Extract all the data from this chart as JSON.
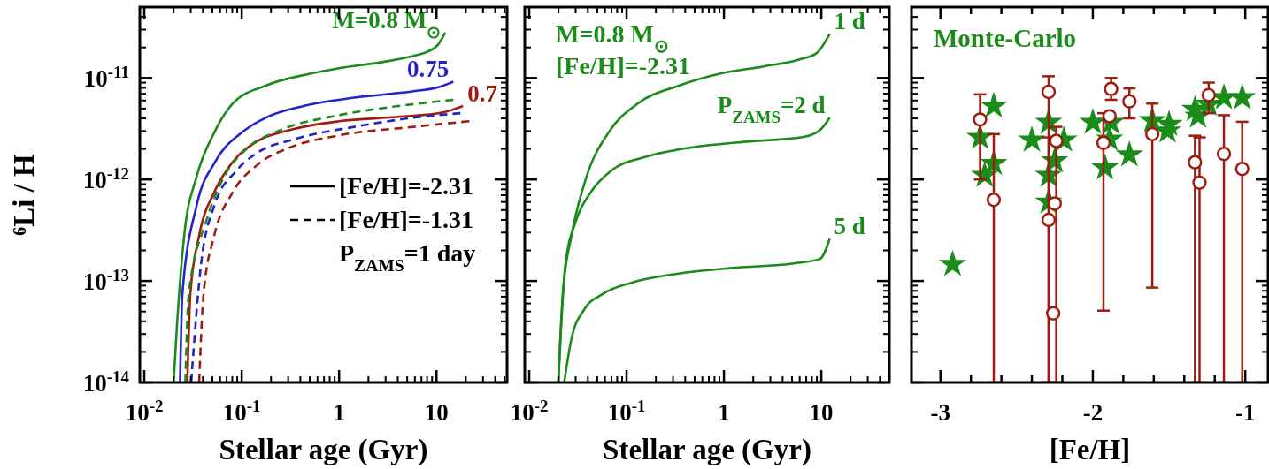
{
  "chart_data": [
    {
      "type": "line",
      "xlabel": "Stellar age (Gyr)",
      "ylabel": "⁶Li / H",
      "log": "xy",
      "xlim": [
        0.009,
        53
      ],
      "ylim": [
        1e-14,
        5e-11
      ],
      "xticks": [
        {
          "value": 0.01,
          "label": "10$^{-2}$"
        },
        {
          "value": 0.1,
          "label": "10$^{-1}$"
        },
        1,
        10
      ],
      "yticks": [
        {
          "value": 1e-14,
          "label": "10$^{-14}$"
        },
        {
          "value": 1e-13,
          "label": "10$^{-13}$"
        },
        {
          "value": 1e-12,
          "label": "10$^{-12}$"
        },
        {
          "value": 1e-11,
          "label": "10$^{-11}$"
        }
      ],
      "annotations": [
        "[Fe/H]=-2.31",
        "[Fe/H]=-1.31",
        "P$_{ZAMS}$=1 day"
      ],
      "series": [
        {
          "name": "M=0.8 M$_{⊙}$",
          "color": "#1a8c1a",
          "line_style": "solid",
          "x": [
            0.02,
            0.0217,
            0.0257,
            0.0344,
            0.0523,
            0.081,
            0.176,
            0.5,
            1.0,
            2.85,
            5.8,
            8.1,
            10.4,
            12.3
          ],
          "values": [
            1e-14,
            3.75e-14,
            2.8e-13,
            1.06e-12,
            2.9e-12,
            5.6e-12,
            8.4e-12,
            1.1e-11,
            1.25e-11,
            1.44e-11,
            1.65e-11,
            1.82e-11,
            2.14e-11,
            2.8e-11
          ]
        },
        {
          "name": "0.75",
          "color": "#2323cc",
          "line_style": "solid",
          "x": [
            0.0233,
            0.0246,
            0.0344,
            0.0533,
            0.1,
            0.176,
            0.433,
            1.43,
            5.8,
            10.9,
            14.9
          ],
          "values": [
            1e-14,
            7.4e-14,
            5.5e-13,
            1.49e-12,
            2.9e-12,
            4.06e-12,
            5.3e-12,
            6.4e-12,
            7.4e-12,
            8.2e-12,
            9.2e-12
          ]
        },
        {
          "name": "0.7",
          "color": "#a01c10",
          "line_style": "solid",
          "x": [
            0.0277,
            0.0297,
            0.0366,
            0.0523,
            0.081,
            0.143,
            0.31,
            1.0,
            4.06,
            11.6,
            18.7
          ],
          "values": [
            1e-14,
            7.4e-14,
            2.8e-13,
            7.5e-13,
            1.49e-12,
            2.37e-12,
            3.07e-12,
            3.75e-12,
            4.14e-12,
            4.58e-12,
            5.3e-12
          ]
        },
        {
          "color": "#1a8c1a",
          "line_style": "dashed",
          "x": [
            0.0264,
            0.0286,
            0.0433,
            0.0658,
            0.116,
            0.251,
            1.0,
            4.06,
            14.9
          ],
          "values": [
            1e-14,
            7.4e-14,
            3.9e-13,
            1.06e-12,
            2.06e-12,
            3.07e-12,
            4.3e-12,
            5.3e-12,
            6.1e-12
          ]
        },
        {
          "color": "#2323cc",
          "line_style": "dashed",
          "x": [
            0.0303,
            0.0382,
            0.0523,
            0.0881,
            0.143,
            0.351,
            1.43,
            5.8,
            17.6
          ],
          "values": [
            1e-14,
            1.44e-13,
            5.5e-13,
            1.22e-12,
            1.82e-12,
            2.5e-12,
            3.3e-12,
            4.06e-12,
            4.5e-12
          ]
        },
        {
          "color": "#a01c10",
          "line_style": "dashed",
          "x": [
            0.0366,
            0.0406,
            0.0523,
            0.081,
            0.143,
            0.31,
            1.0,
            5.8,
            21.7
          ],
          "values": [
            1e-14,
            7.4e-14,
            2.8e-13,
            7.5e-13,
            1.38e-12,
            2.06e-12,
            2.72e-12,
            3.3e-12,
            3.75e-12
          ]
        }
      ]
    },
    {
      "type": "line",
      "xlabel": "Stellar age (Gyr)",
      "log": "xy",
      "xlim": [
        0.009,
        50
      ],
      "ylim": [
        1e-14,
        5e-11
      ],
      "tick_labels": "x",
      "xticks": [
        {
          "value": 0.01,
          "label": "10$^{-2}$"
        },
        {
          "value": 0.1,
          "label": "10$^{-1}$"
        },
        1,
        10
      ],
      "yticks": [
        1e-14,
        1e-13,
        1e-12,
        1e-11
      ],
      "annotations": [
        "M=0.8 M$_{⊙}$",
        "[Fe/H]=-2.31"
      ],
      "series": [
        {
          "name": "1 d",
          "color": "#1a8c1a",
          "line_style": "solid",
          "x": [
            0.0199,
            0.0221,
            0.0272,
            0.0387,
            0.0652,
            0.13,
            0.345,
            0.9,
            2.55,
            5.9,
            8.9,
            12.2
          ],
          "values": [
            1e-14,
            7.4e-14,
            2.8e-13,
            1.06e-12,
            2.9e-12,
            5.6e-12,
            8.4e-12,
            1.1e-11,
            1.3e-11,
            1.52e-11,
            1.75e-11,
            2.72e-11
          ]
        },
        {
          "name": "P$_{ZAMS}$=2 d",
          "color": "#1a8c1a",
          "line_style": "solid",
          "x": [
            0.0199,
            0.0235,
            0.0302,
            0.043,
            0.0695,
            0.16,
            0.453,
            1.83,
            6.4,
            9.7,
            12.2
          ],
          "values": [
            1e-14,
            1.44e-13,
            3.9e-13,
            7.5e-13,
            1.22e-12,
            1.68e-12,
            2.06e-12,
            2.37e-12,
            2.61e-12,
            3.07e-12,
            4.06e-12
          ]
        },
        {
          "name": "5 d",
          "color": "#1a8c1a",
          "line_style": "solid",
          "x": [
            0.0229,
            0.0272,
            0.0371,
            0.0563,
            0.112,
            0.318,
            1.29,
            5.2,
            9.7,
            12.2
          ],
          "values": [
            1e-14,
            2.72e-14,
            5.3e-14,
            7.4e-14,
            9.6e-14,
            1.17e-13,
            1.35e-13,
            1.49e-13,
            1.65e-13,
            2.61e-13
          ]
        }
      ]
    },
    {
      "type": "scatter",
      "xlabel": "[Fe/H]",
      "log": "y",
      "xlim": [
        -3.19,
        -0.85
      ],
      "ylim": [
        1e-14,
        5e-11
      ],
      "tick_labels": "x",
      "xticks": [
        -3,
        {
          "value": -2.8,
          "label": null
        },
        {
          "value": -2.6,
          "label": null
        },
        {
          "value": -2.4,
          "label": null
        },
        {
          "value": -2.2,
          "label": null
        },
        -2,
        {
          "value": -1.8,
          "label": null
        },
        {
          "value": -1.6,
          "label": null
        },
        {
          "value": -1.4,
          "label": null
        },
        {
          "value": -1.2,
          "label": null
        },
        -1
      ],
      "yticks": [
        1e-14,
        1e-13,
        1e-12,
        1e-11
      ],
      "series": [
        {
          "name": "Monte-Carlo",
          "color": "#1a8c1a",
          "marker": "star",
          "x": [
            -2.65,
            -2.74,
            -2.65,
            -2.71,
            -2.4,
            -2.29,
            -2.19,
            -2.25,
            -2.29,
            -2.29,
            -2.0,
            -1.88,
            -1.89,
            -1.92,
            -1.76,
            -1.61,
            -1.5,
            -1.51,
            -1.33,
            -1.31,
            -1.24,
            -1.14,
            -1.02,
            -2.92
          ],
          "values": [
            5.3e-12,
            2.6e-12,
            1.44e-12,
            1.1e-12,
            2.45e-12,
            3.65e-12,
            2.45e-12,
            1.53e-12,
            1.1e-12,
            6e-13,
            3.65e-12,
            3.65e-12,
            2.5e-12,
            1.3e-12,
            1.75e-12,
            3.8e-12,
            3.5e-12,
            3e-12,
            4.9e-12,
            4.2e-12,
            5.5e-12,
            6.4e-12,
            6.4e-12,
            1.46e-13
          ]
        },
        {
          "color": "#a01c10",
          "marker": "circle",
          "x": [
            -2.74,
            -2.65,
            -2.29,
            -2.29,
            -2.25,
            -2.24,
            -2.26,
            -1.88,
            -1.89,
            -1.93,
            -1.76,
            -1.61,
            -1.33,
            -1.3,
            -1.24,
            -1.14,
            -1.02
          ],
          "values": [
            3.9e-12,
            6.3e-13,
            7.3e-12,
            4e-13,
            5.8e-13,
            2.4e-12,
            4.8e-14,
            7.8e-12,
            4.2e-12,
            2.3e-12,
            5.9e-12,
            2.8e-12,
            1.48e-12,
            9.3e-13,
            6.8e-12,
            1.79e-12,
            1.27e-12
          ],
          "errors": [
            [
              1e-12,
              6.9e-12
            ],
            [
              1e-14,
              2.8e-12
            ],
            [
              1e-14,
              1.04e-11
            ],
            [
              1e-14,
              2.6e-12
            ],
            null,
            [
              1e-14,
              3.3e-12
            ],
            null,
            [
              6.1e-12,
              1e-11
            ],
            null,
            [
              5.1e-14,
              4.5e-12
            ],
            [
              4e-12,
              7.9e-12
            ],
            [
              8.6e-14,
              5.6e-12
            ],
            [
              1e-14,
              2.7e-12
            ],
            [
              1e-14,
              2.6e-12
            ],
            [
              4.5e-12,
              9e-12
            ],
            [
              1e-14,
              4.3e-12
            ],
            [
              1e-14,
              3.7e-12
            ]
          ]
        }
      ]
    }
  ]
}
